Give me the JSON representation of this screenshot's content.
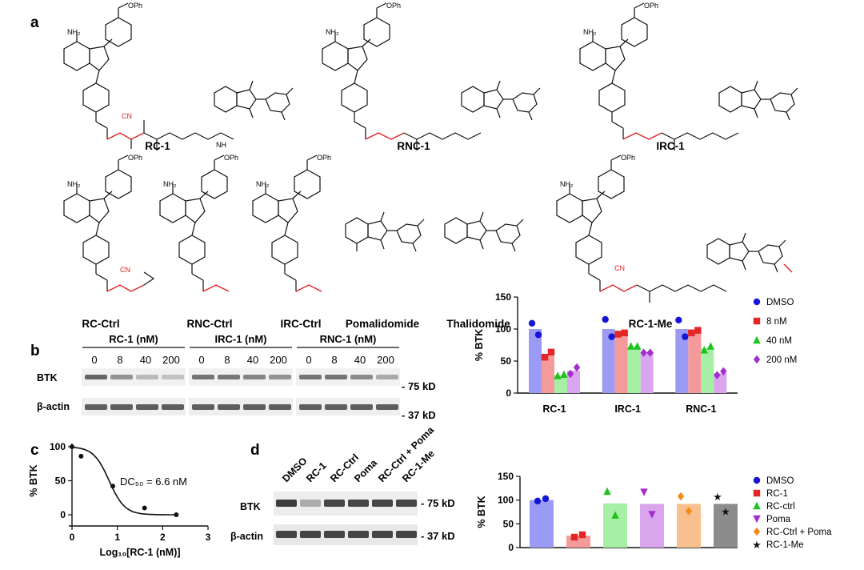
{
  "panel_labels": {
    "a": "a",
    "b": "b",
    "c": "c",
    "d": "d"
  },
  "atoms": {
    "nh2": "NH₂",
    "oph": "OPh",
    "o": "O",
    "n": "N",
    "nh": "NH",
    "cn": "CN"
  },
  "compounds": {
    "rc1": "RC-1",
    "rnc1": "RNC-1",
    "irc1": "IRC-1",
    "rc_ctrl": "RC-Ctrl",
    "rnc_ctrl": "RNC-Ctrl",
    "irc_ctrl": "IRC-Ctrl",
    "poma": "Pomalidomide",
    "thal": "Thalidomide",
    "rc1me": "RC-1-Me"
  },
  "blot_b": {
    "groups": [
      "RC-1 (nM)",
      "IRC-1 (nM)",
      "RNC-1 (nM)"
    ],
    "lanes": [
      "0",
      "8",
      "40",
      "200"
    ],
    "bands": [
      "BTK",
      "β-actin"
    ],
    "markers": [
      "- 75 kD",
      "- 37 kD"
    ]
  },
  "blot_d": {
    "lanes": [
      "DMSO",
      "RC-1",
      "RC-Ctrl",
      "Poma",
      "RC-Ctrl + Poma",
      "RC-1-Me"
    ],
    "bands": [
      "BTK",
      "β-actin"
    ],
    "markers": [
      "- 75 kD",
      "- 37 kD"
    ]
  },
  "chart_data": [
    {
      "id": "b-bar",
      "type": "bar",
      "ylabel": "% BTK",
      "ylim": [
        0,
        150
      ],
      "yticks": [
        0,
        50,
        100,
        150
      ],
      "categories": [
        "RC-1",
        "IRC-1",
        "RNC-1"
      ],
      "legend_position": "right",
      "series": [
        {
          "name": "DMSO",
          "color": "#9b9bf5",
          "marker": "circle",
          "marker_color": "#1515d6",
          "values": [
            100,
            100,
            100
          ],
          "points": [
            [
              109,
              91
            ],
            [
              115,
              88
            ],
            [
              114,
              88
            ]
          ]
        },
        {
          "name": "8 nM",
          "color": "#f59a9a",
          "marker": "square",
          "marker_color": "#e62525",
          "values": [
            60,
            93,
            96
          ],
          "points": [
            [
              56,
              64
            ],
            [
              92,
              94
            ],
            [
              94,
              98
            ]
          ]
        },
        {
          "name": "40 nM",
          "color": "#a6f0a6",
          "marker": "triangle",
          "marker_color": "#1fc21f",
          "values": [
            28,
            73,
            70
          ],
          "points": [
            [
              27,
              29
            ],
            [
              73,
              73
            ],
            [
              67,
              73
            ]
          ]
        },
        {
          "name": "200 nM",
          "color": "#d9a6ee",
          "marker": "diamond",
          "marker_color": "#a22ed1",
          "values": [
            35,
            63,
            31
          ],
          "points": [
            [
              30,
              40
            ],
            [
              63,
              63
            ],
            [
              28,
              34
            ]
          ]
        }
      ]
    },
    {
      "id": "c-curve",
      "type": "scatter",
      "xlabel": "Log₁₀[RC-1 (nM)]",
      "ylabel": "% BTK",
      "xlim": [
        0,
        3
      ],
      "ylim": [
        0,
        100
      ],
      "xticks": [
        0,
        1,
        2,
        3
      ],
      "yticks": [
        0,
        50,
        100
      ],
      "annotation": "DC₅₀ = 6.6 nM",
      "points": {
        "x": [
          0,
          0.2,
          0.9,
          1.6,
          2.3
        ],
        "y": [
          100,
          86,
          42,
          10,
          0
        ]
      },
      "fit": {
        "top": 100,
        "bottom": 0,
        "logdc50": 0.82,
        "hill": 1.2
      }
    },
    {
      "id": "d-bar",
      "type": "bar",
      "ylabel": "% BTK",
      "ylim": [
        0,
        150
      ],
      "yticks": [
        0,
        50,
        100,
        150
      ],
      "legend_position": "right",
      "series": [
        {
          "name": "DMSO",
          "color": "#9b9bf5",
          "marker": "circle",
          "marker_color": "#1515d6",
          "value": 100,
          "points": [
            98,
            103
          ]
        },
        {
          "name": "RC-1",
          "color": "#f59a9a",
          "marker": "square",
          "marker_color": "#e62525",
          "value": 25,
          "points": [
            22,
            27
          ]
        },
        {
          "name": "RC-ctrl",
          "color": "#a6f0a6",
          "marker": "triangle",
          "marker_color": "#1fc21f",
          "value": 93,
          "points": [
            118,
            68
          ]
        },
        {
          "name": "Poma",
          "color": "#d9a6ee",
          "marker": "tridown",
          "marker_color": "#a22ed1",
          "value": 92,
          "points": [
            117,
            70
          ]
        },
        {
          "name": "RC-Ctrl + Poma",
          "color": "#f8c08e",
          "marker": "diamond",
          "marker_color": "#f28c1c",
          "value": 92,
          "points": [
            108,
            77
          ]
        },
        {
          "name": "RC-1-Me",
          "color": "#8c8c8c",
          "marker": "star",
          "marker_color": "#111111",
          "value": 92,
          "points": [
            108,
            77
          ]
        }
      ]
    }
  ]
}
